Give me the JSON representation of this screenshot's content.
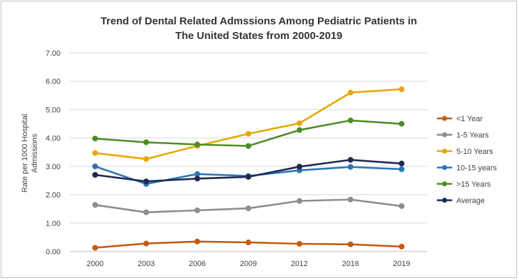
{
  "chart_data": {
    "type": "line",
    "title_line1": "Trend of Dental Related Admssions Among Pediatric Patients in",
    "title_line2": "The United States from 2000-2019",
    "xlabel": "",
    "ylabel_line1": "Rate per 1000 Hospital",
    "ylabel_line2": "Admissions",
    "categories": [
      "2000",
      "2003",
      "2006",
      "2009",
      "2012",
      "2016",
      "2019"
    ],
    "ylim": [
      0,
      7
    ],
    "yticks": [
      "0.00",
      "1.00",
      "2.00",
      "3.00",
      "4.00",
      "5.00",
      "6.00",
      "7.00"
    ],
    "grid": true,
    "legend_position": "right",
    "series": [
      {
        "name": "<1 Year",
        "color": "#c55a11",
        "values": [
          0.13,
          0.28,
          0.35,
          0.32,
          0.27,
          0.25,
          0.17
        ]
      },
      {
        "name": "1-5 Years",
        "color": "#8c8c8c",
        "values": [
          1.64,
          1.38,
          1.45,
          1.52,
          1.78,
          1.83,
          1.6
        ]
      },
      {
        "name": "5-10 Years",
        "color": "#e6a800",
        "values": [
          3.47,
          3.26,
          3.72,
          4.15,
          4.52,
          5.6,
          5.72
        ]
      },
      {
        "name": "10-15 years",
        "color": "#2e75b6",
        "values": [
          3.0,
          2.38,
          2.73,
          2.66,
          2.86,
          2.98,
          2.9
        ]
      },
      {
        "name": ">15 Years",
        "color": "#4e8d25",
        "values": [
          3.98,
          3.85,
          3.77,
          3.72,
          4.28,
          4.62,
          4.5
        ]
      },
      {
        "name": "Average",
        "color": "#1f2a52",
        "values": [
          2.7,
          2.47,
          2.57,
          2.63,
          2.99,
          3.23,
          3.1
        ]
      }
    ]
  }
}
